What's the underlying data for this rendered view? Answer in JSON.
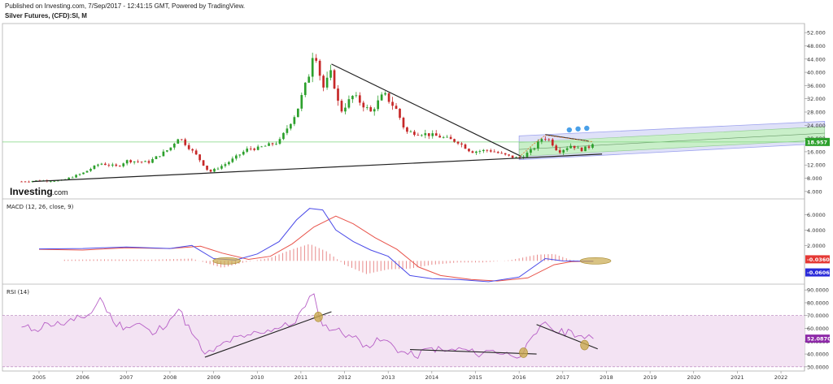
{
  "header": {
    "published": "Published on Investing.com, 7/Sep/2017 - 12:41:15 GMT, Powered by TradingView.",
    "symbol": "Silver Futures, (CFD):SI, M"
  },
  "logo": {
    "main": "Investing",
    "suffix": ".com"
  },
  "colors": {
    "up": "#2ca02c",
    "down": "#c62828",
    "macd": "#4a4ae8",
    "signal": "#e8534a",
    "hist": "#e88a8a",
    "rsi": "#b75fc6",
    "rsi_band": "#f3e3f3",
    "channel": "#9ea3ee",
    "channel_inner": "#c9efc9",
    "hline": "#7fd47f",
    "trend": "#222222",
    "highlight": "#c9a94f"
  },
  "chart_data": [
    {
      "type": "candlestick",
      "title": "Silver Futures, (CFD):SI, M",
      "xlabel": "",
      "ylabel": "",
      "x_ticks": [
        "2005",
        "2006",
        "2007",
        "2008",
        "2009",
        "2010",
        "2011",
        "2012",
        "2013",
        "2014",
        "2015",
        "2016",
        "2017",
        "2018",
        "2019",
        "2020",
        "2021",
        "2022"
      ],
      "y_ticks": [
        "52.000",
        "48.000",
        "44.000",
        "40.000",
        "36.000",
        "32.000",
        "28.000",
        "24.000",
        "20.000",
        "16.000",
        "12.000",
        "8.000",
        "4.000"
      ],
      "ylim": [
        2,
        54
      ],
      "last_value_label": "18.957",
      "last_value": 18.96,
      "horizontal_line": 18.96,
      "series_close": [
        [
          2004.6,
          7.0
        ],
        [
          2005.0,
          7.3
        ],
        [
          2005.5,
          7.2
        ],
        [
          2006.0,
          9.5
        ],
        [
          2006.4,
          12.5
        ],
        [
          2006.8,
          11.5
        ],
        [
          2007.0,
          13.3
        ],
        [
          2007.5,
          12.8
        ],
        [
          2008.0,
          17.0
        ],
        [
          2008.2,
          20.5
        ],
        [
          2008.6,
          15.0
        ],
        [
          2008.9,
          9.8
        ],
        [
          2009.3,
          12.5
        ],
        [
          2009.8,
          17.0
        ],
        [
          2010.0,
          17.0
        ],
        [
          2010.5,
          19.0
        ],
        [
          2010.9,
          28.0
        ],
        [
          2011.2,
          40.0
        ],
        [
          2011.3,
          48.0
        ],
        [
          2011.5,
          35.0
        ],
        [
          2011.7,
          40.0
        ],
        [
          2011.9,
          28.0
        ],
        [
          2012.2,
          33.0
        ],
        [
          2012.6,
          28.0
        ],
        [
          2012.9,
          33.5
        ],
        [
          2013.2,
          28.5
        ],
        [
          2013.4,
          22.0
        ],
        [
          2013.8,
          21.5
        ],
        [
          2014.2,
          20.5
        ],
        [
          2014.6,
          19.0
        ],
        [
          2014.9,
          16.0
        ],
        [
          2015.3,
          16.5
        ],
        [
          2015.8,
          14.5
        ],
        [
          2016.0,
          14.0
        ],
        [
          2016.3,
          16.5
        ],
        [
          2016.55,
          20.5
        ],
        [
          2016.7,
          19.5
        ],
        [
          2016.9,
          16.0
        ],
        [
          2017.2,
          18.0
        ],
        [
          2017.4,
          16.5
        ],
        [
          2017.6,
          17.5
        ],
        [
          2017.7,
          18.96
        ]
      ]
    },
    {
      "type": "line",
      "title": "MACD (12, 26, close, 9)",
      "y_ticks": [
        "6.0000",
        "4.0000",
        "2.0000"
      ],
      "ylim": [
        -2.8,
        7.5
      ],
      "value_labels": [
        "-0.0360",
        "-0.0606"
      ],
      "series": [
        {
          "name": "MACD",
          "points": [
            [
              2005.0,
              1.55
            ],
            [
              2006.0,
              1.6
            ],
            [
              2007.0,
              1.8
            ],
            [
              2008.0,
              1.6
            ],
            [
              2008.5,
              2.0
            ],
            [
              2009.0,
              0.3
            ],
            [
              2009.5,
              0.1
            ],
            [
              2010.0,
              0.9
            ],
            [
              2010.5,
              2.5
            ],
            [
              2010.9,
              5.3
            ],
            [
              2011.2,
              6.8
            ],
            [
              2011.5,
              6.6
            ],
            [
              2011.8,
              4.0
            ],
            [
              2012.2,
              2.5
            ],
            [
              2012.6,
              1.4
            ],
            [
              2013.0,
              0.6
            ],
            [
              2013.5,
              -1.9
            ],
            [
              2014.0,
              -2.3
            ],
            [
              2014.6,
              -2.4
            ],
            [
              2015.3,
              -2.7
            ],
            [
              2016.0,
              -2.1
            ],
            [
              2016.6,
              0.3
            ],
            [
              2017.0,
              0.0
            ],
            [
              2017.7,
              -0.06
            ]
          ]
        },
        {
          "name": "Signal",
          "points": [
            [
              2005.0,
              1.5
            ],
            [
              2006.0,
              1.4
            ],
            [
              2007.0,
              1.7
            ],
            [
              2008.0,
              1.6
            ],
            [
              2008.7,
              1.9
            ],
            [
              2009.2,
              1.0
            ],
            [
              2009.8,
              0.2
            ],
            [
              2010.3,
              0.6
            ],
            [
              2010.8,
              2.2
            ],
            [
              2011.3,
              4.4
            ],
            [
              2011.8,
              5.8
            ],
            [
              2012.2,
              4.8
            ],
            [
              2012.7,
              3.0
            ],
            [
              2013.2,
              1.5
            ],
            [
              2013.7,
              -0.8
            ],
            [
              2014.2,
              -1.9
            ],
            [
              2014.9,
              -2.4
            ],
            [
              2015.5,
              -2.6
            ],
            [
              2016.2,
              -2.2
            ],
            [
              2016.8,
              -0.5
            ],
            [
              2017.2,
              -0.1
            ],
            [
              2017.7,
              -0.04
            ]
          ]
        }
      ],
      "histogram": [
        [
          2005.5,
          0.15
        ],
        [
          2006.5,
          0.2
        ],
        [
          2007.5,
          0.15
        ],
        [
          2008.5,
          0.3
        ],
        [
          2009.2,
          -0.9
        ],
        [
          2009.7,
          -0.2
        ],
        [
          2010.3,
          0.4
        ],
        [
          2010.8,
          1.5
        ],
        [
          2011.2,
          2.2
        ],
        [
          2011.6,
          1.2
        ],
        [
          2012.0,
          -0.5
        ],
        [
          2012.5,
          -1.7
        ],
        [
          2013.0,
          -1.1
        ],
        [
          2013.5,
          -1.0
        ],
        [
          2014.0,
          -0.5
        ],
        [
          2014.6,
          -0.2
        ],
        [
          2015.2,
          -0.2
        ],
        [
          2015.8,
          0.1
        ],
        [
          2016.4,
          0.8
        ],
        [
          2016.8,
          0.9
        ],
        [
          2017.2,
          0.1
        ],
        [
          2017.6,
          -0.05
        ]
      ]
    },
    {
      "type": "line",
      "title": "RSI (14)",
      "y_ticks": [
        "90.0000",
        "80.0000",
        "70.0000",
        "60.0000",
        "50.0000",
        "40.0000",
        "30.0000"
      ],
      "ylim": [
        28,
        92
      ],
      "band": [
        30,
        70
      ],
      "value_label": "52.0870",
      "series": [
        {
          "name": "RSI",
          "points": [
            [
              2004.6,
              61
            ],
            [
              2004.9,
              59
            ],
            [
              2005.2,
              64
            ],
            [
              2005.5,
              63
            ],
            [
              2005.8,
              66
            ],
            [
              2006.2,
              72
            ],
            [
              2006.4,
              84
            ],
            [
              2006.7,
              65
            ],
            [
              2007.0,
              61
            ],
            [
              2007.3,
              64
            ],
            [
              2007.6,
              55
            ],
            [
              2008.0,
              67
            ],
            [
              2008.2,
              75
            ],
            [
              2008.5,
              56
            ],
            [
              2008.8,
              40
            ],
            [
              2009.0,
              42
            ],
            [
              2009.3,
              50
            ],
            [
              2009.7,
              53
            ],
            [
              2010.0,
              57
            ],
            [
              2010.4,
              60
            ],
            [
              2010.8,
              63
            ],
            [
              2011.1,
              77
            ],
            [
              2011.3,
              87
            ],
            [
              2011.5,
              62
            ],
            [
              2011.8,
              59
            ],
            [
              2012.1,
              55
            ],
            [
              2012.5,
              47
            ],
            [
              2012.9,
              51
            ],
            [
              2013.3,
              42
            ],
            [
              2013.6,
              38
            ],
            [
              2014.0,
              45
            ],
            [
              2014.3,
              42
            ],
            [
              2014.7,
              44
            ],
            [
              2015.0,
              40
            ],
            [
              2015.4,
              43
            ],
            [
              2015.8,
              39
            ],
            [
              2016.1,
              41
            ],
            [
              2016.4,
              56
            ],
            [
              2016.6,
              65
            ],
            [
              2016.9,
              56
            ],
            [
              2017.2,
              58
            ],
            [
              2017.5,
              52
            ],
            [
              2017.7,
              52
            ]
          ]
        }
      ]
    }
  ]
}
